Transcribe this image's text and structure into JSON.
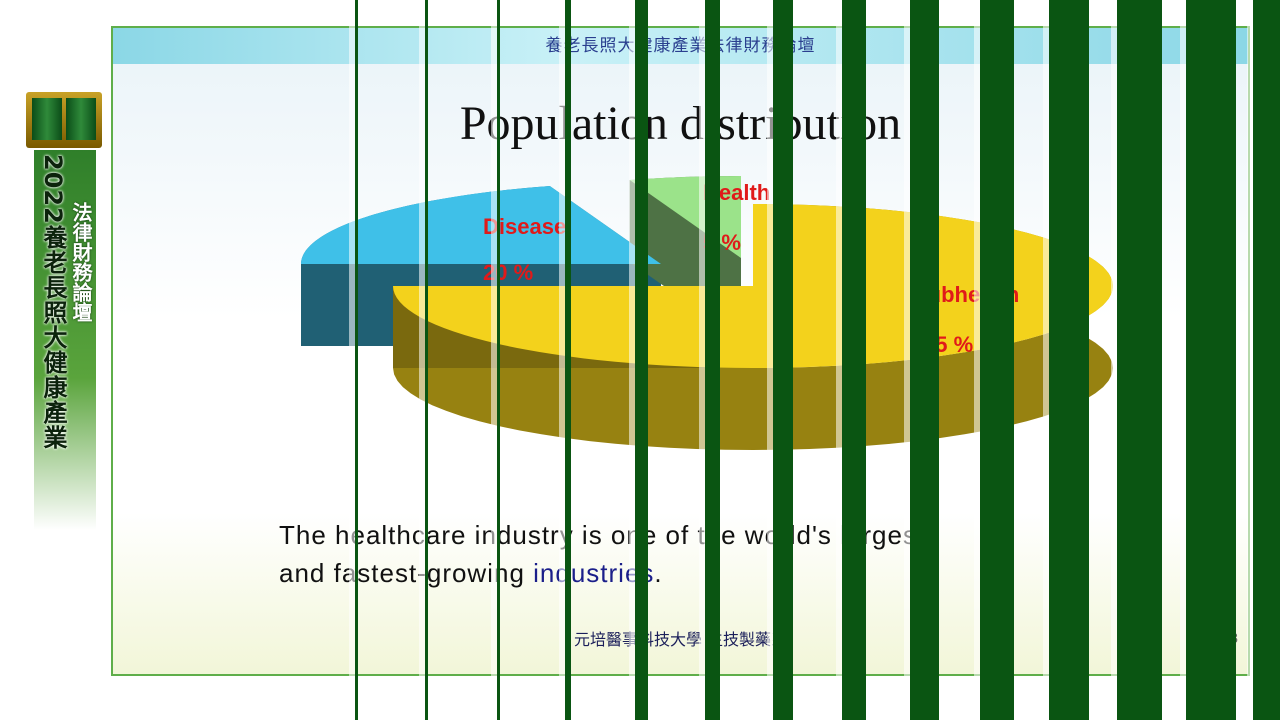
{
  "banner": {
    "year_title": "2022養老長照大健康產業",
    "forum_title": "法律財務論壇"
  },
  "slide": {
    "header": "養老長照大健康產業法律財務論壇",
    "title": "Population distribution",
    "body_plain": "The healthcare industry is one of the world's largest",
    "body_line2_start": "and fastest-growing ",
    "body_line2_highlight": "industries",
    "body_line2_end": ".",
    "footer": "元培醫事科技大學 生技製藥系",
    "page_number": "8"
  },
  "chart_data": {
    "type": "pie",
    "title": "Population distribution",
    "slices": [
      {
        "label": "Disease",
        "value": 20,
        "display": "20 %",
        "color": "#3fc0e8"
      },
      {
        "label": "Health",
        "value": 5,
        "display": "5 %",
        "color": "#9be38a"
      },
      {
        "label": "Subhealth",
        "value": 75,
        "display": "75 %",
        "color": "#f3d21c"
      }
    ]
  },
  "colors": {
    "stripe": "#0a5512",
    "frame": "#5fae4a",
    "label_red": "#e01a1a"
  }
}
